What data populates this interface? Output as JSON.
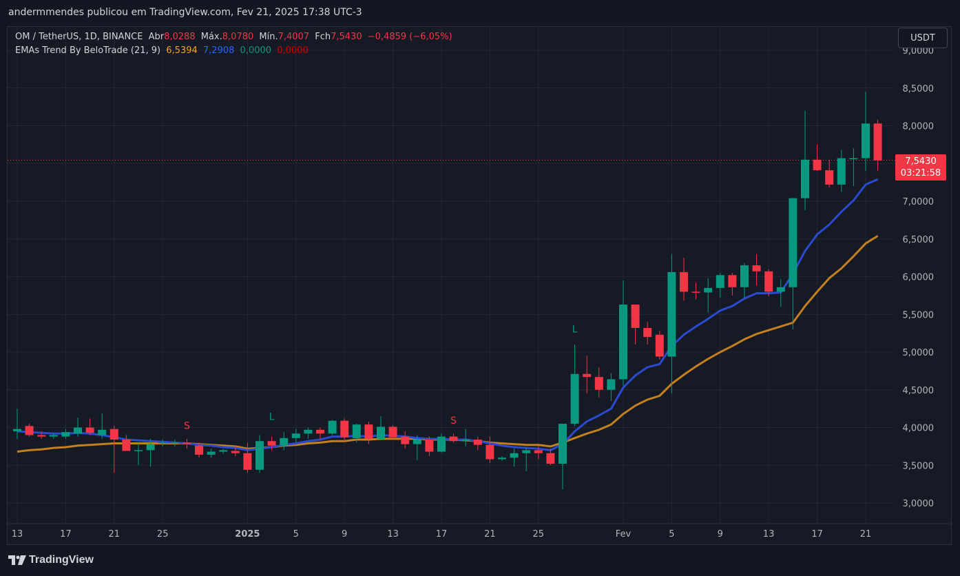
{
  "publisher": "andermmendes publicou em TradingView.com, Fev 21, 2025 17:38 UTC-3",
  "legend": {
    "symbol": "OM / TetherUS, 1D, BINANCE",
    "open_label": "Abr",
    "open": "8,0288",
    "high_label": "Máx.",
    "high": "8,0780",
    "low_label": "Mín.",
    "low": "7,4007",
    "close_label": "Fch",
    "close": "7,5430",
    "change": "−0,4859 (−6,05%)",
    "indicator": "EMAs Trend By BeloTrade (21, 9)",
    "ema21": "6,5394",
    "ema9": "7,2908",
    "v3": "0,0000",
    "v4": "0,0000"
  },
  "currency": "USDT",
  "price_label": {
    "price": "7,5430",
    "countdown": "03:21:58"
  },
  "footer_brand": "TradingView",
  "colors": {
    "up": "#089981",
    "down": "#f23645",
    "ema_fast": "#2a4bd0",
    "ema_slow": "#c4801f",
    "background": "#161a25"
  },
  "chart_data": {
    "type": "candlestick",
    "y_axis_ticks": [
      "3,0000",
      "3,5000",
      "4,0000",
      "4,5000",
      "5,0000",
      "5,5000",
      "6,0000",
      "6,5000",
      "7,0000",
      "7,5000",
      "8,0000",
      "8,5000",
      "9,0000"
    ],
    "y_tick_values": [
      3.0,
      3.5,
      4.0,
      4.5,
      5.0,
      5.5,
      6.0,
      6.5,
      7.0,
      7.5,
      8.0,
      8.5,
      9.0
    ],
    "ylim": [
      2.72,
      9.42
    ],
    "x_axis_ticks": [
      {
        "label": "13",
        "index": 0
      },
      {
        "label": "17",
        "index": 4
      },
      {
        "label": "21",
        "index": 8
      },
      {
        "label": "25",
        "index": 12
      },
      {
        "label": "2025",
        "index": 19
      },
      {
        "label": "5",
        "index": 23
      },
      {
        "label": "9",
        "index": 27
      },
      {
        "label": "13",
        "index": 31
      },
      {
        "label": "17",
        "index": 35
      },
      {
        "label": "21",
        "index": 39
      },
      {
        "label": "25",
        "index": 43
      },
      {
        "label": "Fev",
        "index": 50
      },
      {
        "label": "5",
        "index": 54
      },
      {
        "label": "9",
        "index": 58
      },
      {
        "label": "13",
        "index": 62
      },
      {
        "label": "17",
        "index": 66
      },
      {
        "label": "21",
        "index": 70
      }
    ],
    "candles": [
      {
        "o": 3.95,
        "h": 4.25,
        "l": 3.85,
        "c": 3.98
      },
      {
        "o": 4.02,
        "h": 4.05,
        "l": 3.88,
        "c": 3.9
      },
      {
        "o": 3.9,
        "h": 3.95,
        "l": 3.85,
        "c": 3.88
      },
      {
        "o": 3.88,
        "h": 3.92,
        "l": 3.85,
        "c": 3.9
      },
      {
        "o": 3.88,
        "h": 3.98,
        "l": 3.85,
        "c": 3.94
      },
      {
        "o": 3.92,
        "h": 4.13,
        "l": 3.88,
        "c": 4.0
      },
      {
        "o": 4.0,
        "h": 4.12,
        "l": 3.9,
        "c": 3.93
      },
      {
        "o": 3.9,
        "h": 4.19,
        "l": 3.85,
        "c": 3.97
      },
      {
        "o": 3.98,
        "h": 4.02,
        "l": 3.4,
        "c": 3.84
      },
      {
        "o": 3.84,
        "h": 3.9,
        "l": 3.7,
        "c": 3.69
      },
      {
        "o": 3.7,
        "h": 3.8,
        "l": 3.5,
        "c": 3.7
      },
      {
        "o": 3.7,
        "h": 3.85,
        "l": 3.48,
        "c": 3.78
      },
      {
        "o": 3.79,
        "h": 3.84,
        "l": 3.75,
        "c": 3.8
      },
      {
        "o": 3.8,
        "h": 3.84,
        "l": 3.75,
        "c": 3.8
      },
      {
        "o": 3.8,
        "h": 3.85,
        "l": 3.72,
        "c": 3.78
      },
      {
        "o": 3.76,
        "h": 3.8,
        "l": 3.6,
        "c": 3.64
      },
      {
        "o": 3.64,
        "h": 3.72,
        "l": 3.6,
        "c": 3.68
      },
      {
        "o": 3.68,
        "h": 3.72,
        "l": 3.65,
        "c": 3.7
      },
      {
        "o": 3.69,
        "h": 3.75,
        "l": 3.62,
        "c": 3.66
      },
      {
        "o": 3.66,
        "h": 3.8,
        "l": 3.4,
        "c": 3.44
      },
      {
        "o": 3.44,
        "h": 3.9,
        "l": 3.4,
        "c": 3.82
      },
      {
        "o": 3.82,
        "h": 3.88,
        "l": 3.7,
        "c": 3.76
      },
      {
        "o": 3.76,
        "h": 3.94,
        "l": 3.7,
        "c": 3.86
      },
      {
        "o": 3.86,
        "h": 3.98,
        "l": 3.8,
        "c": 3.92
      },
      {
        "o": 3.92,
        "h": 4.0,
        "l": 3.85,
        "c": 3.97
      },
      {
        "o": 3.97,
        "h": 4.0,
        "l": 3.85,
        "c": 3.92
      },
      {
        "o": 3.92,
        "h": 4.1,
        "l": 3.9,
        "c": 4.09
      },
      {
        "o": 4.09,
        "h": 4.12,
        "l": 3.82,
        "c": 3.87
      },
      {
        "o": 3.86,
        "h": 4.05,
        "l": 3.8,
        "c": 4.04
      },
      {
        "o": 4.04,
        "h": 4.08,
        "l": 3.78,
        "c": 3.85
      },
      {
        "o": 3.85,
        "h": 4.15,
        "l": 3.83,
        "c": 4.01
      },
      {
        "o": 4.01,
        "h": 4.03,
        "l": 3.85,
        "c": 3.87
      },
      {
        "o": 3.88,
        "h": 3.95,
        "l": 3.72,
        "c": 3.78
      },
      {
        "o": 3.78,
        "h": 3.9,
        "l": 3.57,
        "c": 3.84
      },
      {
        "o": 3.84,
        "h": 3.88,
        "l": 3.62,
        "c": 3.68
      },
      {
        "o": 3.68,
        "h": 3.92,
        "l": 3.67,
        "c": 3.88
      },
      {
        "o": 3.88,
        "h": 3.92,
        "l": 3.8,
        "c": 3.82
      },
      {
        "o": 3.82,
        "h": 3.98,
        "l": 3.75,
        "c": 3.84
      },
      {
        "o": 3.84,
        "h": 3.88,
        "l": 3.7,
        "c": 3.77
      },
      {
        "o": 3.77,
        "h": 3.88,
        "l": 3.53,
        "c": 3.58
      },
      {
        "o": 3.58,
        "h": 3.62,
        "l": 3.56,
        "c": 3.6
      },
      {
        "o": 3.6,
        "h": 3.72,
        "l": 3.48,
        "c": 3.66
      },
      {
        "o": 3.66,
        "h": 3.74,
        "l": 3.42,
        "c": 3.7
      },
      {
        "o": 3.7,
        "h": 3.76,
        "l": 3.58,
        "c": 3.66
      },
      {
        "o": 3.66,
        "h": 3.72,
        "l": 3.5,
        "c": 3.52
      },
      {
        "o": 3.52,
        "h": 4.05,
        "l": 3.18,
        "c": 4.05
      },
      {
        "o": 4.05,
        "h": 5.1,
        "l": 4.02,
        "c": 4.71
      },
      {
        "o": 4.71,
        "h": 4.95,
        "l": 4.45,
        "c": 4.67
      },
      {
        "o": 4.67,
        "h": 4.8,
        "l": 4.4,
        "c": 4.5
      },
      {
        "o": 4.5,
        "h": 4.72,
        "l": 4.35,
        "c": 4.64
      },
      {
        "o": 4.64,
        "h": 5.95,
        "l": 4.55,
        "c": 5.63
      },
      {
        "o": 5.63,
        "h": 5.63,
        "l": 5.1,
        "c": 5.32
      },
      {
        "o": 5.32,
        "h": 5.4,
        "l": 5.1,
        "c": 5.2
      },
      {
        "o": 5.23,
        "h": 5.28,
        "l": 4.9,
        "c": 4.94
      },
      {
        "o": 4.94,
        "h": 6.3,
        "l": 4.45,
        "c": 6.06
      },
      {
        "o": 6.06,
        "h": 6.25,
        "l": 5.68,
        "c": 5.8
      },
      {
        "o": 5.8,
        "h": 5.92,
        "l": 5.7,
        "c": 5.79
      },
      {
        "o": 5.79,
        "h": 5.98,
        "l": 5.52,
        "c": 5.85
      },
      {
        "o": 5.85,
        "h": 6.05,
        "l": 5.72,
        "c": 6.02
      },
      {
        "o": 6.02,
        "h": 6.05,
        "l": 5.75,
        "c": 5.86
      },
      {
        "o": 5.86,
        "h": 6.18,
        "l": 5.72,
        "c": 6.15
      },
      {
        "o": 6.15,
        "h": 6.3,
        "l": 5.88,
        "c": 6.07
      },
      {
        "o": 6.07,
        "h": 6.1,
        "l": 5.74,
        "c": 5.8
      },
      {
        "o": 5.8,
        "h": 5.97,
        "l": 5.6,
        "c": 5.86
      },
      {
        "o": 5.86,
        "h": 7.04,
        "l": 5.3,
        "c": 7.04
      },
      {
        "o": 7.04,
        "h": 8.2,
        "l": 6.88,
        "c": 7.55
      },
      {
        "o": 7.55,
        "h": 7.75,
        "l": 7.4,
        "c": 7.41
      },
      {
        "o": 7.41,
        "h": 7.55,
        "l": 7.18,
        "c": 7.22
      },
      {
        "o": 7.22,
        "h": 7.68,
        "l": 7.12,
        "c": 7.57
      },
      {
        "o": 7.57,
        "h": 7.7,
        "l": 7.2,
        "c": 7.57
      },
      {
        "o": 7.57,
        "h": 8.45,
        "l": 7.4,
        "c": 8.03
      },
      {
        "o": 8.03,
        "h": 8.08,
        "l": 7.4,
        "c": 7.54
      }
    ],
    "ema_fast": [
      3.95,
      3.94,
      3.93,
      3.92,
      3.92,
      3.93,
      3.92,
      3.9,
      3.87,
      3.84,
      3.83,
      3.82,
      3.81,
      3.8,
      3.79,
      3.77,
      3.76,
      3.74,
      3.73,
      3.7,
      3.72,
      3.74,
      3.77,
      3.79,
      3.82,
      3.84,
      3.88,
      3.88,
      3.89,
      3.88,
      3.9,
      3.89,
      3.88,
      3.86,
      3.85,
      3.85,
      3.84,
      3.84,
      3.82,
      3.79,
      3.76,
      3.74,
      3.73,
      3.72,
      3.7,
      3.78,
      3.95,
      4.08,
      4.16,
      4.25,
      4.53,
      4.69,
      4.8,
      4.84,
      5.08,
      5.23,
      5.34,
      5.44,
      5.55,
      5.61,
      5.71,
      5.78,
      5.78,
      5.79,
      6.04,
      6.34,
      6.56,
      6.69,
      6.86,
      7.01,
      7.22,
      7.29
    ],
    "ema_slow": [
      3.68,
      3.7,
      3.71,
      3.73,
      3.74,
      3.76,
      3.77,
      3.78,
      3.79,
      3.79,
      3.79,
      3.79,
      3.79,
      3.79,
      3.79,
      3.78,
      3.77,
      3.76,
      3.75,
      3.72,
      3.73,
      3.74,
      3.76,
      3.77,
      3.79,
      3.8,
      3.82,
      3.82,
      3.84,
      3.84,
      3.85,
      3.85,
      3.85,
      3.85,
      3.84,
      3.84,
      3.84,
      3.83,
      3.82,
      3.8,
      3.79,
      3.78,
      3.77,
      3.77,
      3.75,
      3.8,
      3.86,
      3.92,
      3.97,
      4.04,
      4.18,
      4.29,
      4.37,
      4.42,
      4.58,
      4.7,
      4.81,
      4.91,
      5.0,
      5.08,
      5.17,
      5.24,
      5.29,
      5.34,
      5.39,
      5.61,
      5.8,
      5.98,
      6.11,
      6.27,
      6.44,
      6.54
    ],
    "signals": [
      {
        "label": "S",
        "index": 14,
        "price": 3.98,
        "color": "#f23645"
      },
      {
        "label": "L",
        "index": 21,
        "price": 4.1,
        "color": "#089981"
      },
      {
        "label": "S",
        "index": 36,
        "price": 4.05,
        "color": "#f23645"
      },
      {
        "label": "L",
        "index": 46,
        "price": 5.26,
        "color": "#089981"
      }
    ],
    "last_price": 7.543
  }
}
